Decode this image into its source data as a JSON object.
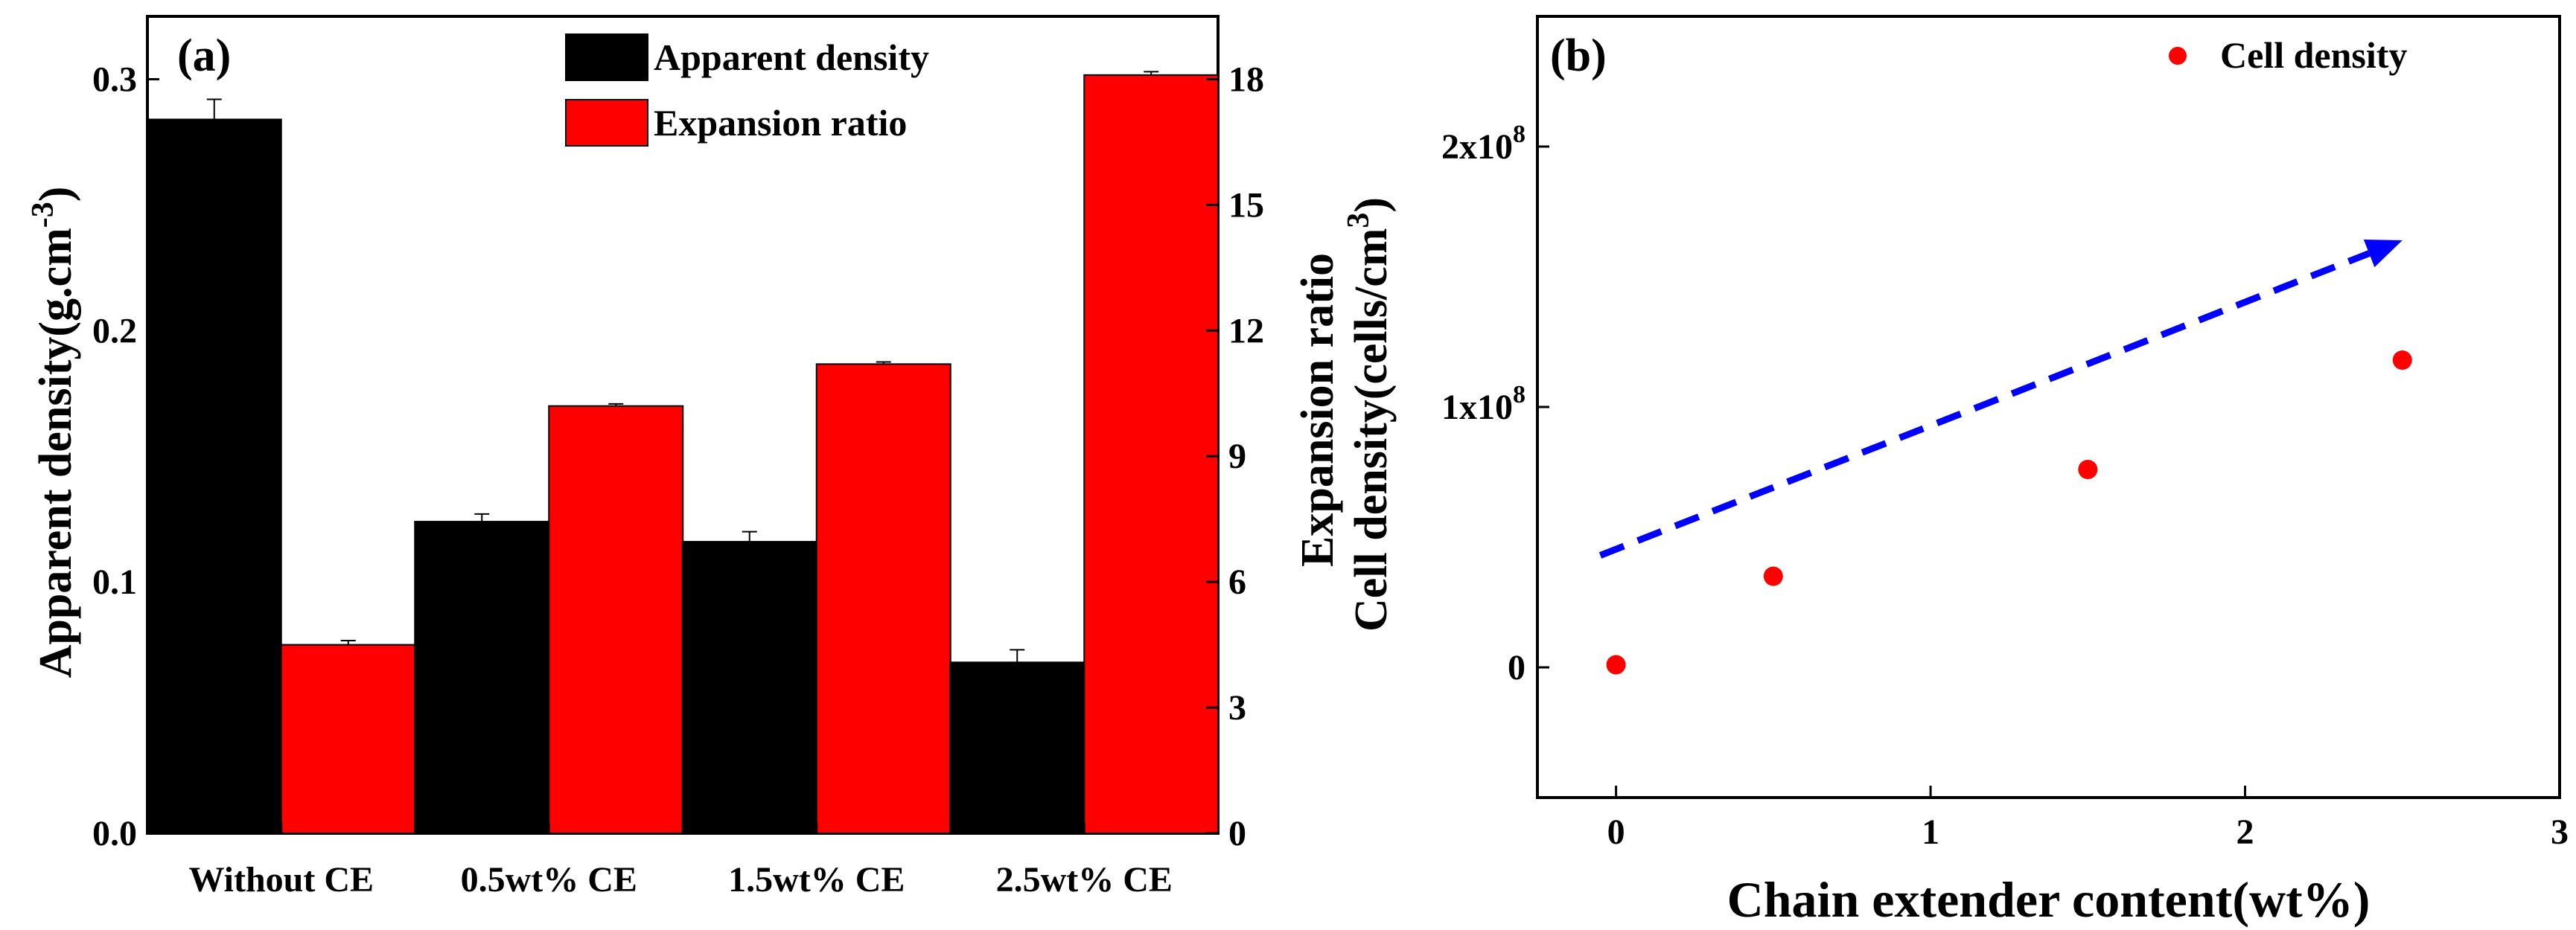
{
  "chart_data": [
    {
      "panel_label": "(a)",
      "type": "bar",
      "categories": [
        "Without CE",
        "0.5wt% CE",
        "1.5wt% CE",
        "2.5wt% CE"
      ],
      "series": [
        {
          "name": "Apparent density",
          "axis": "left",
          "color": "#000000",
          "values": [
            0.284,
            0.124,
            0.116,
            0.068
          ],
          "errors": [
            0.008,
            0.003,
            0.004,
            0.005
          ]
        },
        {
          "name": "Expansion ratio",
          "axis": "right",
          "color": "#ff0000",
          "values": [
            4.5,
            10.2,
            11.2,
            18.1
          ],
          "errors": [
            0.1,
            0.05,
            0.05,
            0.08
          ]
        }
      ],
      "ylabel": "Apparent density(g.cm",
      "ylabel_sup": "-3",
      "ylabel_close": ")",
      "ylim": [
        0,
        0.325
      ],
      "yticks": [
        0.0,
        0.1,
        0.2,
        0.3
      ],
      "ytick_labels": [
        "0.0",
        "0.1",
        "0.2",
        "0.3"
      ],
      "y2label": "Expansion ratio",
      "y2lim": [
        0,
        19.5
      ],
      "y2ticks": [
        0,
        3,
        6,
        9,
        12,
        15,
        18
      ],
      "y2tick_labels": [
        "0",
        "3",
        "6",
        "9",
        "12",
        "15",
        "18"
      ],
      "legend": "top-center",
      "grid": false
    },
    {
      "panel_label": "(b)",
      "type": "scatter",
      "series": [
        {
          "name": "Cell density",
          "color": "#ff0000",
          "x": [
            0,
            0.5,
            1.5,
            2.5
          ],
          "y": [
            1000000,
            35000000,
            76000000,
            118000000
          ]
        }
      ],
      "trend_arrow": {
        "color": "#0000ff",
        "from": [
          -0.05,
          43000000
        ],
        "to": [
          2.5,
          164000000
        ]
      },
      "xlabel": "Chain extender content(wt%)",
      "ylabel": "Cell density(cells/cm",
      "ylabel_sup": "3",
      "ylabel_close": ")",
      "xlim": [
        -0.25,
        3
      ],
      "ylim": [
        -50000000,
        250000000
      ],
      "xticks": [
        0,
        1,
        2,
        3
      ],
      "xtick_labels": [
        "0",
        "1",
        "2",
        "3"
      ],
      "yticks": [
        0,
        100000000,
        200000000
      ],
      "ytick_labels": [
        {
          "base": "0",
          "sup": ""
        },
        {
          "base": "1x10",
          "sup": "8"
        },
        {
          "base": "2x10",
          "sup": "8"
        }
      ],
      "legend": "top-right",
      "grid": false
    }
  ]
}
